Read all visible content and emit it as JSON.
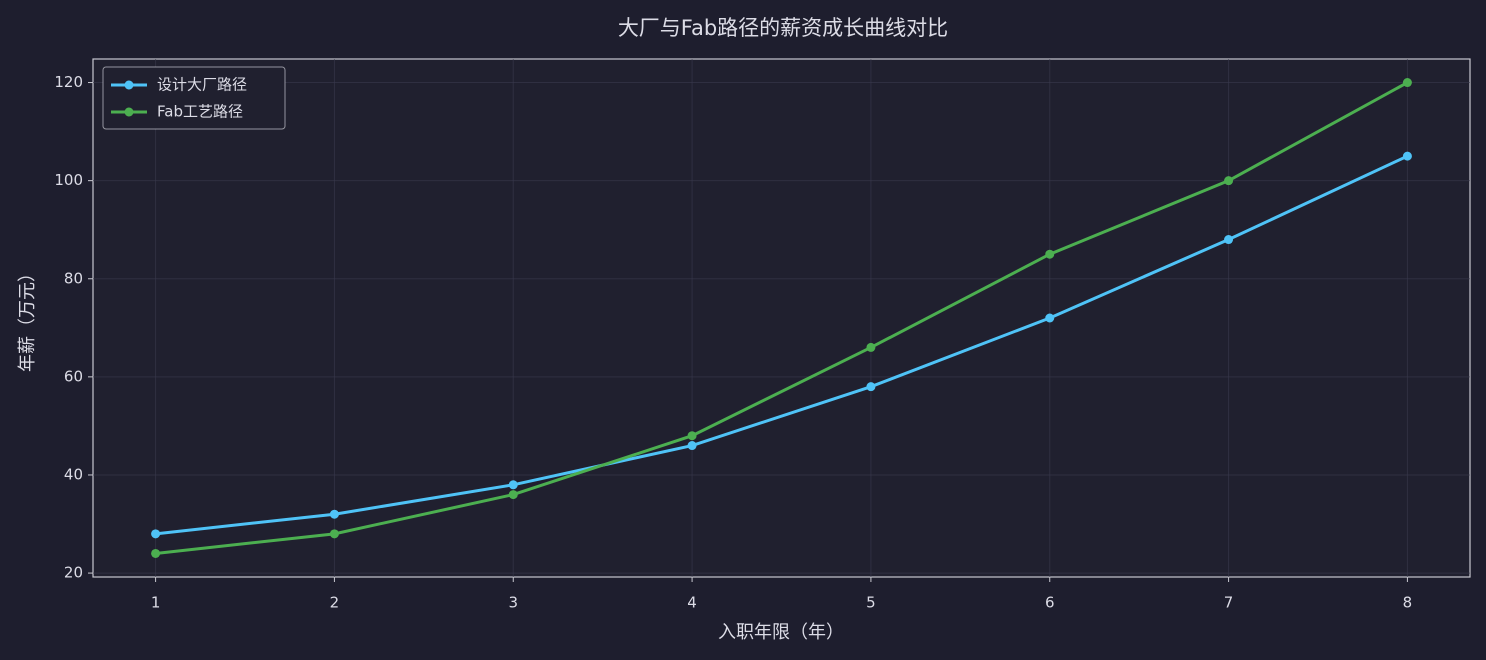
{
  "chart_data": {
    "type": "line",
    "title": "大厂与Fab路径的薪资成长曲线对比",
    "xlabel": "入职年限（年）",
    "ylabel": "年薪（万元）",
    "x": [
      1,
      2,
      3,
      4,
      5,
      6,
      7,
      8
    ],
    "series": [
      {
        "name": "设计大厂路径",
        "color": "#4fc3f7",
        "values": [
          28,
          32,
          38,
          46,
          58,
          72,
          88,
          105
        ]
      },
      {
        "name": "Fab工艺路径",
        "color": "#4caf50",
        "values": [
          24,
          28,
          36,
          48,
          66,
          85,
          100,
          120
        ]
      }
    ],
    "xlim": [
      0.65,
      8.35
    ],
    "xticks": [
      1,
      2,
      3,
      4,
      5,
      6,
      7,
      8
    ],
    "ylim": [
      19.2,
      124.8
    ],
    "yticks": [
      20,
      40,
      60,
      80,
      100,
      120
    ],
    "grid": true,
    "legend": "upper left"
  }
}
